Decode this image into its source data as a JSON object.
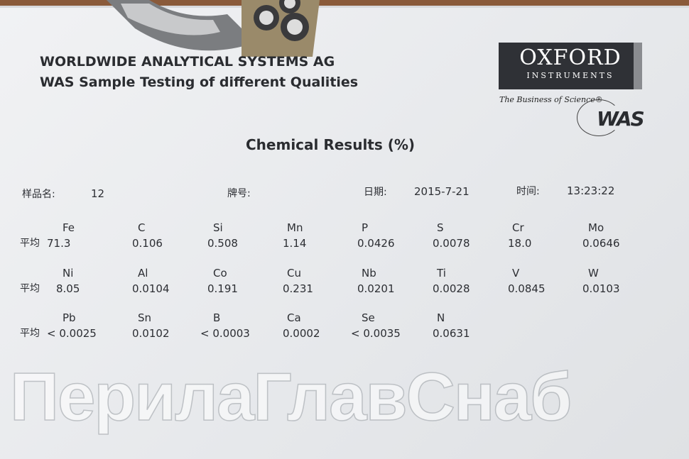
{
  "header": {
    "line1": "WORLDWIDE ANALYTICAL SYSTEMS AG",
    "line2": "WAS Sample Testing of different Qualities"
  },
  "logo": {
    "brand": "OXFORD",
    "sub": "INSTRUMENTS",
    "tagline": "The Business of Science®",
    "mark": "WAS"
  },
  "title": "Chemical Results   (%)",
  "meta": {
    "sample_label": "样品名:",
    "sample_value": "12",
    "grade_label": "牌号:",
    "date_label": "日期:",
    "date_value": "2015-7-21",
    "time_label": "时间:",
    "time_value": "13:23:22"
  },
  "avg_label": "平均",
  "rows": [
    [
      {
        "el": "Fe",
        "val": "71.3"
      },
      {
        "el": "C",
        "val": "0.106"
      },
      {
        "el": "Si",
        "val": "0.508"
      },
      {
        "el": "Mn",
        "val": "1.14"
      },
      {
        "el": "P",
        "val": "0.0426"
      },
      {
        "el": "S",
        "val": "0.0078"
      },
      {
        "el": "Cr",
        "val": "18.0"
      },
      {
        "el": "Mo",
        "val": "0.0646"
      }
    ],
    [
      {
        "el": "Ni",
        "val": "8.05"
      },
      {
        "el": "Al",
        "val": "0.0104"
      },
      {
        "el": "Co",
        "val": "0.191"
      },
      {
        "el": "Cu",
        "val": "0.231"
      },
      {
        "el": "Nb",
        "val": "0.0201"
      },
      {
        "el": "Ti",
        "val": "0.0028"
      },
      {
        "el": "V",
        "val": "0.0845"
      },
      {
        "el": "W",
        "val": "0.0103"
      }
    ],
    [
      {
        "el": "Pb",
        "val": "< 0.0025"
      },
      {
        "el": "Sn",
        "val": "0.0102"
      },
      {
        "el": "B",
        "val": "< 0.0003"
      },
      {
        "el": "Ca",
        "val": "0.0002"
      },
      {
        "el": "Se",
        "val": "< 0.0035"
      },
      {
        "el": "N",
        "val": "0.0631"
      }
    ]
  ],
  "watermark": "ПерилаГлавСнаб"
}
